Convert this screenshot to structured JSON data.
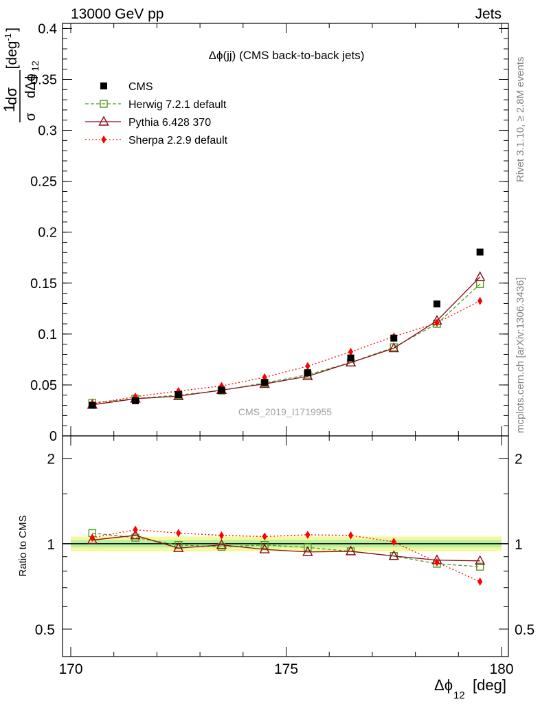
{
  "header": {
    "energy_label": "13000 GeV pp",
    "category_label": "Jets"
  },
  "side_labels": {
    "rivet": "Rivet 3.1.10, ≥ 2.8M events",
    "mcplots": "mcplots.cern.ch [arXiv:1306.3436]"
  },
  "chart_data": [
    {
      "type": "line",
      "panel": "main",
      "title": "Δϕ(jj) (CMS back-to-back jets)",
      "watermark": "CMS_2019_I1719955",
      "ylabel": "1/σ dσ/dΔϕ₁₂ [deg⁻¹]",
      "ylabel_parts": {
        "one": "1",
        "sigma": "σ",
        "dsigma": "dσ",
        "dphi": "dΔϕ",
        "sub": "12",
        "unit": "[deg",
        "exp": "-1",
        "close": "]"
      },
      "xlim": [
        170,
        180
      ],
      "ylim": [
        0,
        0.405
      ],
      "yticks": [
        0,
        0.05,
        0.1,
        0.15,
        0.2,
        0.25,
        0.3,
        0.35,
        0.4
      ],
      "ytick_labels": [
        "0",
        "0.05",
        "0.1",
        "0.15",
        "0.2",
        "0.25",
        "0.3",
        "0.35",
        "0.4"
      ],
      "x": [
        170.5,
        171.5,
        172.5,
        173.5,
        174.5,
        175.5,
        176.5,
        177.5,
        178.5,
        179.5
      ],
      "series": [
        {
          "name": "CMS",
          "color": "#000000",
          "marker": "filled-square",
          "line": "none",
          "values": [
            0.03,
            0.0345,
            0.0405,
            0.045,
            0.0525,
            0.062,
            0.0765,
            0.096,
            0.1295,
            0.1805
          ]
        },
        {
          "name": "Herwig 7.2.1 default",
          "color": "#4f9a1c",
          "marker": "open-square",
          "line": "dashed",
          "values": [
            0.0325,
            0.0365,
            0.04,
            0.0445,
            0.052,
            0.06,
            0.072,
            0.087,
            0.11,
            0.149
          ]
        },
        {
          "name": "Pythia 6.428 370",
          "color": "#8b0a1a",
          "marker": "open-triangle",
          "line": "solid",
          "values": [
            0.0305,
            0.0365,
            0.039,
            0.045,
            0.051,
            0.0585,
            0.072,
            0.086,
            0.113,
            0.156
          ]
        },
        {
          "name": "Sherpa 2.2.9 default",
          "color": "#ff0000",
          "marker": "filled-diamond",
          "line": "dotted",
          "values": [
            0.0315,
            0.0385,
            0.044,
            0.049,
            0.0575,
            0.0685,
            0.0825,
            0.0975,
            0.111,
            0.1325
          ]
        }
      ]
    },
    {
      "type": "line",
      "panel": "ratio",
      "ylabel": "Ratio to CMS",
      "xlabel": "Δϕ₁₂ [deg]",
      "xlabel_parts": {
        "main": "Δϕ",
        "sub": "12",
        "unit": "[deg]"
      },
      "xlim": [
        170,
        180
      ],
      "ylim": [
        0.4,
        2.4
      ],
      "scale": "log",
      "yticks": [
        0.5,
        1,
        2
      ],
      "ytick_labels": [
        "0.5",
        "1",
        "2"
      ],
      "xticks": [
        170,
        175,
        180
      ],
      "xtick_labels": [
        "170",
        "175",
        "180"
      ],
      "band_inner": 0.03,
      "band_outer": 0.06,
      "x": [
        170.5,
        171.5,
        172.5,
        173.5,
        174.5,
        175.5,
        176.5,
        177.5,
        178.5,
        179.5
      ],
      "series": [
        {
          "name": "Herwig 7.2.1 default",
          "color": "#4f9a1c",
          "marker": "open-square",
          "line": "dashed",
          "values": [
            1.09,
            1.05,
            0.99,
            0.975,
            0.99,
            0.97,
            0.94,
            0.905,
            0.85,
            0.83
          ]
        },
        {
          "name": "Pythia 6.428 370",
          "color": "#8b0a1a",
          "marker": "open-triangle",
          "line": "solid",
          "values": [
            1.03,
            1.07,
            0.965,
            0.99,
            0.955,
            0.935,
            0.94,
            0.905,
            0.875,
            0.87
          ]
        },
        {
          "name": "Sherpa 2.2.9 default",
          "color": "#ff0000",
          "marker": "filled-diamond",
          "line": "dotted",
          "values": [
            1.05,
            1.12,
            1.09,
            1.07,
            1.06,
            1.075,
            1.07,
            1.015,
            0.86,
            0.735
          ]
        }
      ]
    }
  ]
}
